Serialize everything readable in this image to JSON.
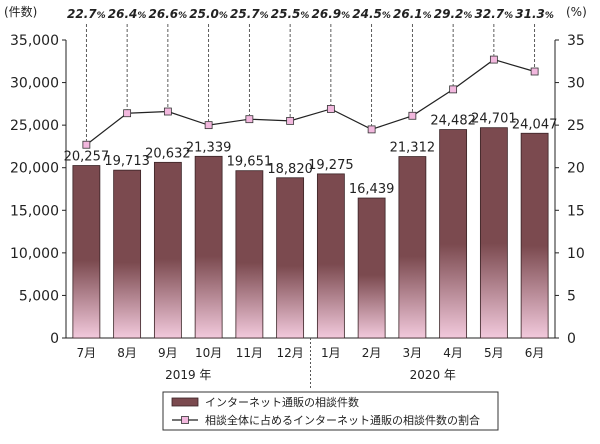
{
  "chart_data": {
    "type": "bar",
    "categories": [
      "7月",
      "8月",
      "9月",
      "10月",
      "11月",
      "12月",
      "1月",
      "2月",
      "3月",
      "4月",
      "5月",
      "6月"
    ],
    "year_groups": [
      {
        "label": "2019 年",
        "months": [
          "7月",
          "8月",
          "9月",
          "10月",
          "11月",
          "12月"
        ]
      },
      {
        "label": "2020 年",
        "months": [
          "1月",
          "2月",
          "3月",
          "4月",
          "5月",
          "6月"
        ]
      }
    ],
    "series": [
      {
        "name": "インターネット通販の相談件数",
        "kind": "bar",
        "axis": "left",
        "values": [
          20257,
          19713,
          20632,
          21339,
          19651,
          18820,
          19275,
          16439,
          21312,
          24482,
          24701,
          24047
        ],
        "labels": [
          "20,257",
          "19,713",
          "20,632",
          "21,339",
          "19,651",
          "18,820",
          "19,275",
          "16,439",
          "21,312",
          "24,482",
          "24,701",
          "24,047"
        ],
        "color": "#7b4a4f"
      },
      {
        "name": "相談全体に占めるインターネット通販の相談件数の割合",
        "kind": "line",
        "axis": "right",
        "values": [
          22.7,
          26.4,
          26.6,
          25.0,
          25.7,
          25.5,
          26.9,
          24.5,
          26.1,
          29.2,
          32.7,
          31.3
        ],
        "labels": [
          "22.7",
          "26.4",
          "26.6",
          "25.0",
          "25.7",
          "25.5",
          "26.9",
          "24.5",
          "26.1",
          "29.2",
          "32.7",
          "31.3"
        ],
        "label_suffix": "%",
        "marker_color": "#f2b8de"
      }
    ],
    "y_left": {
      "unit_label": "(件数)",
      "ylim": [
        0,
        35000
      ],
      "ticks": [
        0,
        5000,
        10000,
        15000,
        20000,
        25000,
        30000,
        35000
      ],
      "tick_labels": [
        "0",
        "5,000",
        "10,000",
        "15,000",
        "20,000",
        "25,000",
        "30,000",
        "35,000"
      ]
    },
    "y_right": {
      "unit_label": "(%)",
      "ylim": [
        0,
        35
      ],
      "ticks": [
        0,
        5,
        10,
        15,
        20,
        25,
        30,
        35
      ],
      "tick_labels": [
        "0",
        "5",
        "10",
        "15",
        "20",
        "25",
        "30",
        "35"
      ]
    },
    "grid": false,
    "legend_position": "bottom-center"
  }
}
